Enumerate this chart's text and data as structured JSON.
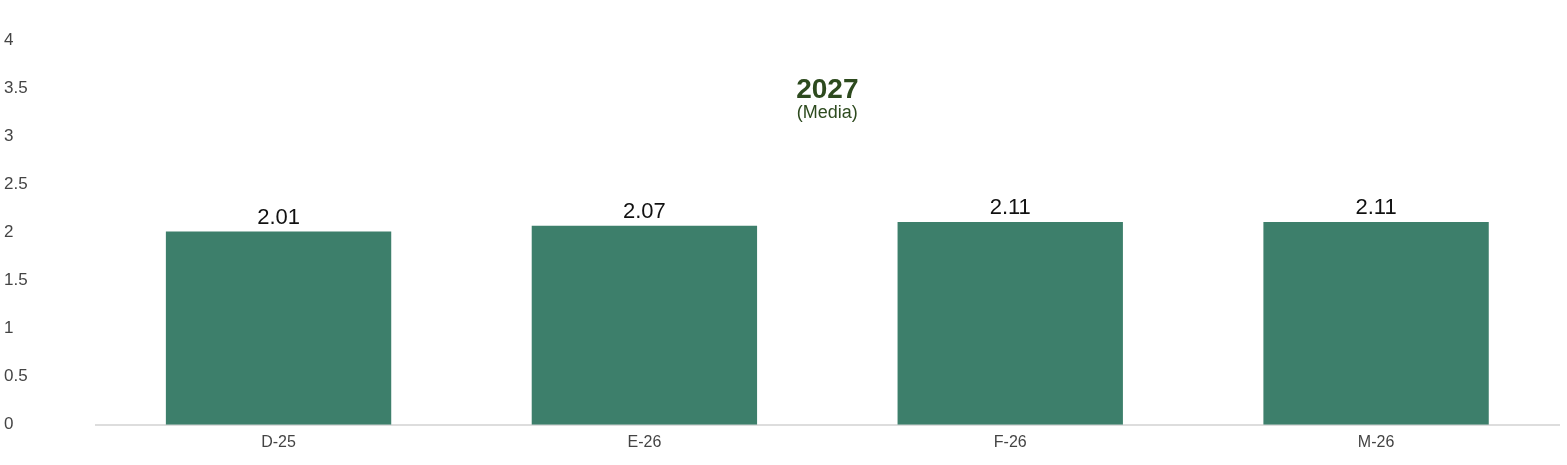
{
  "chart_data": {
    "type": "bar",
    "title": "2027",
    "subtitle": "(Media)",
    "categories": [
      "D-25",
      "E-26",
      "F-26",
      "M-26"
    ],
    "values": [
      2.01,
      2.07,
      2.11,
      2.11
    ],
    "color": "#3d7f6b",
    "ylim": [
      0,
      4
    ],
    "yticks": [
      0,
      0.5,
      1,
      1.5,
      2,
      2.5,
      3,
      3.5,
      4
    ],
    "grid": false,
    "data_labels": true
  }
}
